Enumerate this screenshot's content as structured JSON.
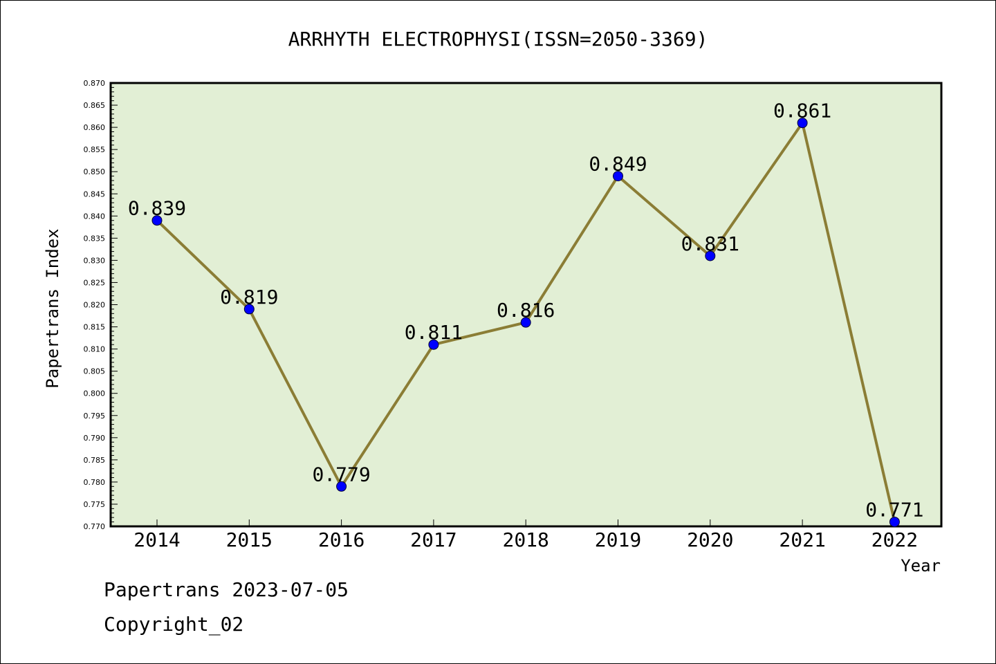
{
  "chart_data": {
    "type": "line",
    "title": "ARRHYTH ELECTROPHYSI(ISSN=2050-3369)",
    "xlabel": "Year",
    "ylabel": "Papertrans Index",
    "categories": [
      "2014",
      "2015",
      "2016",
      "2017",
      "2018",
      "2019",
      "2020",
      "2021",
      "2022"
    ],
    "series": [
      {
        "values": [
          0.839,
          0.819,
          0.779,
          0.811,
          0.816,
          0.849,
          0.831,
          0.861,
          0.771
        ],
        "labels": [
          "0.839",
          "0.819",
          "0.779",
          "0.811",
          "0.816",
          "0.849",
          "0.831",
          "0.861",
          "0.771"
        ]
      }
    ],
    "ylim": [
      0.77,
      0.87
    ],
    "ytick_step": 0.005,
    "grid": false,
    "colors": {
      "plot_background": "#e2efd5",
      "line": "#8b7d35",
      "marker": "#0000ff"
    }
  },
  "footer": {
    "source": "Papertrans 2023-07-05",
    "copyright": "Copyright_02"
  }
}
